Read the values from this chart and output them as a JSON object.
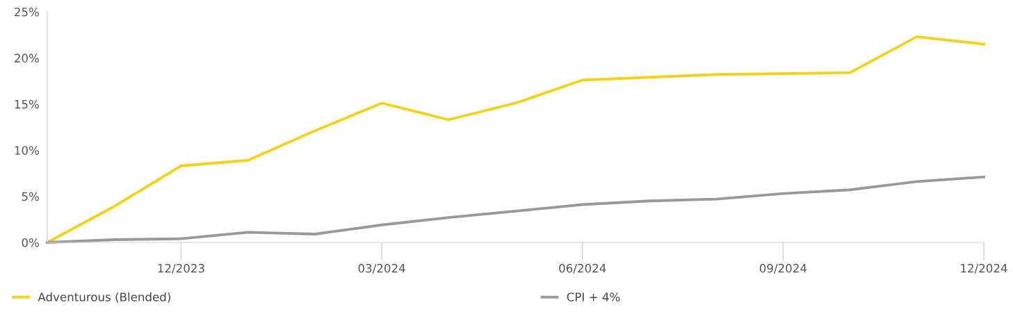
{
  "chart_data": {
    "type": "line",
    "categories": [
      null,
      null,
      "12/2023",
      null,
      null,
      "03/2024",
      null,
      null,
      "06/2024",
      null,
      null,
      "09/2024",
      null,
      null,
      "12/2024"
    ],
    "series": [
      {
        "name": "Adventurous (Blended)",
        "color": "#f2d21e",
        "values": [
          0,
          3.9,
          8.3,
          8.9,
          12.1,
          15.1,
          13.3,
          15.1,
          17.6,
          17.9,
          18.2,
          18.3,
          18.4,
          22.3,
          21.5
        ]
      },
      {
        "name": "CPI + 4%",
        "color": "#999999",
        "values": [
          0,
          0.3,
          0.4,
          1.1,
          0.9,
          1.9,
          2.7,
          3.4,
          4.1,
          4.5,
          4.7,
          5.3,
          5.7,
          6.6,
          7.1
        ]
      }
    ],
    "ylim": [
      0,
      25
    ],
    "yticks": [
      {
        "value": 0,
        "label": "0%"
      },
      {
        "value": 5,
        "label": "5%"
      },
      {
        "value": 10,
        "label": "10%"
      },
      {
        "value": 15,
        "label": "15%"
      },
      {
        "value": 20,
        "label": "20%"
      },
      {
        "value": 25,
        "label": "25%"
      }
    ],
    "grid": false,
    "legend": "bottom",
    "marker": "none",
    "line_style": "solid"
  }
}
